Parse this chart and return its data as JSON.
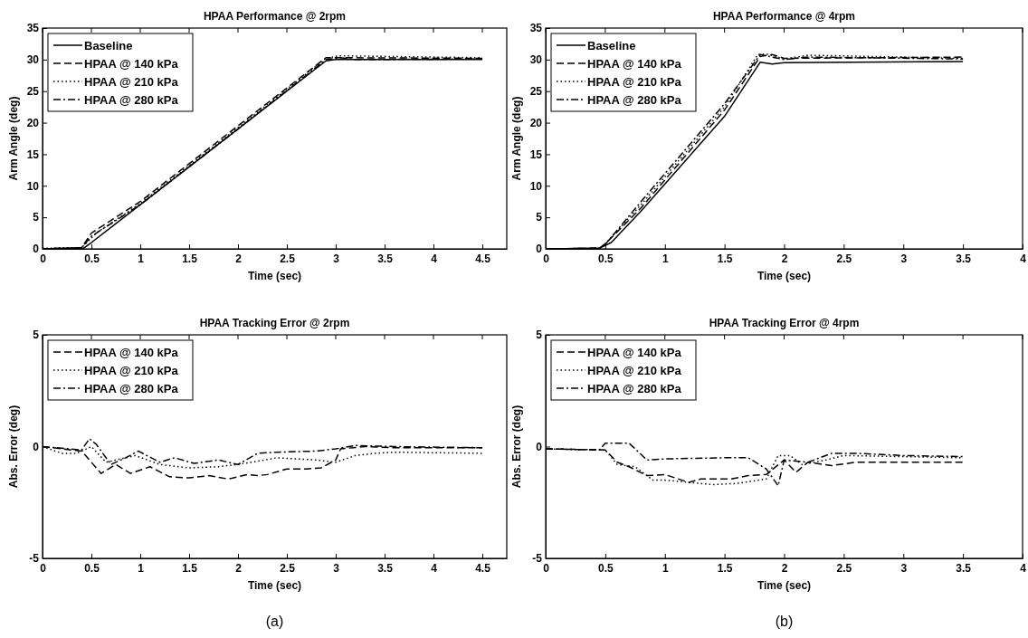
{
  "chart_data": [
    {
      "type": "line",
      "title": "HPAA Performance @ 2rpm",
      "xlabel": "Time (sec)",
      "ylabel": "Arm Angle (deg)",
      "xlim": [
        0,
        4.75
      ],
      "xticks": [
        0,
        0.5,
        1,
        1.5,
        2,
        2.5,
        3,
        3.5,
        4,
        4.5
      ],
      "ylim": [
        0,
        35
      ],
      "yticks": [
        0,
        5,
        10,
        15,
        20,
        25,
        30,
        35
      ],
      "legend": "top left",
      "grid": false,
      "series": [
        {
          "name": "Baseline",
          "color": "#000000",
          "line_style": "solid",
          "x": [
            0,
            0.42,
            0.5,
            2.9,
            3.0,
            4.5
          ],
          "values": [
            0,
            0.1,
            1,
            29.8,
            30,
            30
          ]
        },
        {
          "name": "HPAA @ 140 kPa",
          "color": "#000000",
          "line_style": "dashed",
          "x": [
            0,
            0.4,
            0.5,
            1,
            2,
            2.9,
            3,
            4.5
          ],
          "values": [
            0,
            0.2,
            2.5,
            7.5,
            19.5,
            30.3,
            30.3,
            30.2
          ]
        },
        {
          "name": "HPAA @ 210 kPa",
          "color": "#000000",
          "line_style": "dotted",
          "x": [
            0,
            0.4,
            0.55,
            1,
            2,
            2.9,
            3.03,
            4.5
          ],
          "values": [
            0.1,
            0.2,
            2.5,
            7.2,
            19.2,
            30.2,
            30.6,
            30.3
          ]
        },
        {
          "name": "HPAA @ 280 kPa",
          "color": "#000000",
          "line_style": "dashdot",
          "x": [
            0,
            0.4,
            0.5,
            1,
            2,
            2.9,
            3.05,
            3.2,
            4.5
          ],
          "values": [
            0,
            0.2,
            2,
            7,
            19,
            30,
            30.3,
            30,
            30.1
          ]
        }
      ]
    },
    {
      "type": "line",
      "title": "HPAA Performance @ 4rpm",
      "xlabel": "Time (sec)",
      "ylabel": "Arm Angle (deg)",
      "xlim": [
        0,
        4
      ],
      "xticks": [
        0,
        0.5,
        1,
        1.5,
        2,
        2.5,
        3,
        3.5,
        4
      ],
      "ylim": [
        0,
        35
      ],
      "yticks": [
        0,
        5,
        10,
        15,
        20,
        25,
        30,
        35
      ],
      "legend": "top left",
      "grid": false,
      "series": [
        {
          "name": "Baseline",
          "color": "#000000",
          "line_style": "solid",
          "x": [
            0,
            0.45,
            0.55,
            0.8,
            1.5,
            1.8,
            1.9,
            2,
            3.5
          ],
          "values": [
            0,
            0.1,
            1,
            6,
            21,
            29.6,
            29.3,
            29.5,
            29.7
          ]
        },
        {
          "name": "HPAA @ 140 kPa",
          "color": "#000000",
          "line_style": "dashed",
          "x": [
            0,
            0.45,
            0.5,
            0.8,
            1.5,
            1.8,
            1.9,
            2,
            3.5
          ],
          "values": [
            0,
            0.1,
            0.8,
            6.5,
            22,
            30.5,
            30.8,
            30.2,
            30.4
          ]
        },
        {
          "name": "HPAA @ 210 kPa",
          "color": "#000000",
          "line_style": "dotted",
          "x": [
            0,
            0.45,
            0.5,
            0.8,
            1.5,
            1.78,
            1.85,
            2.0,
            2.2,
            3.5
          ],
          "values": [
            0,
            0.1,
            0.8,
            7,
            22.5,
            30.8,
            30.9,
            30.1,
            30.7,
            30.2
          ]
        },
        {
          "name": "HPAA @ 280 kPa",
          "color": "#000000",
          "line_style": "dashdot",
          "x": [
            0,
            0.45,
            0.5,
            0.8,
            1.5,
            1.8,
            2,
            2.2,
            3.5
          ],
          "values": [
            0,
            0.1,
            0.7,
            7.5,
            23,
            30.8,
            30,
            30.4,
            30.1
          ]
        }
      ]
    },
    {
      "type": "line",
      "title": "HPAA Tracking Error @ 2rpm",
      "xlabel": "Time (sec)",
      "ylabel": "Abs. Error (deg)",
      "xlim": [
        0,
        4.75
      ],
      "xticks": [
        0,
        0.5,
        1,
        1.5,
        2,
        2.5,
        3,
        3.5,
        4,
        4.5
      ],
      "ylim": [
        -5,
        5
      ],
      "yticks": [
        -5,
        0,
        5
      ],
      "legend": "top left",
      "grid": false,
      "annotations": [
        "(a)"
      ],
      "series": [
        {
          "name": "HPAA @ 140 kPa",
          "color": "#000000",
          "line_style": "dashed",
          "x": [
            0,
            0.4,
            0.6,
            0.75,
            0.9,
            1.1,
            1.3,
            1.5,
            1.7,
            1.9,
            2.1,
            2.2,
            2.3,
            2.5,
            2.7,
            2.85,
            3.0,
            3.05,
            3.3,
            3.6,
            4.5
          ],
          "values": [
            0,
            -0.2,
            -1.2,
            -0.8,
            -1.2,
            -0.9,
            -1.35,
            -1.4,
            -1.3,
            -1.45,
            -1.25,
            -1.3,
            -1.25,
            -1.0,
            -1.0,
            -0.95,
            -0.6,
            -0.1,
            0,
            -0.05,
            -0.05
          ]
        },
        {
          "name": "HPAA @ 210 kPa",
          "color": "#000000",
          "line_style": "dotted",
          "x": [
            0,
            0.2,
            0.35,
            0.5,
            0.65,
            0.95,
            1.2,
            1.5,
            1.8,
            2.0,
            2.4,
            2.8,
            3.0,
            3.2,
            3.4,
            3.6,
            4.5
          ],
          "values": [
            0,
            -0.3,
            -0.3,
            0,
            -0.7,
            -0.4,
            -0.8,
            -0.95,
            -0.9,
            -0.8,
            -0.5,
            -0.6,
            -0.7,
            -0.4,
            -0.3,
            -0.25,
            -0.3
          ]
        },
        {
          "name": "HPAA @ 280 kPa",
          "color": "#000000",
          "line_style": "dashdot",
          "x": [
            0,
            0.4,
            0.48,
            0.55,
            0.7,
            0.85,
            0.98,
            1.2,
            1.35,
            1.55,
            1.8,
            2.0,
            2.2,
            2.4,
            2.8,
            3.0,
            3.2,
            3.6,
            4.5
          ],
          "values": [
            0,
            -0.15,
            0.35,
            0.1,
            -0.8,
            -0.5,
            -0.2,
            -0.7,
            -0.5,
            -0.75,
            -0.6,
            -0.8,
            -0.3,
            -0.25,
            -0.2,
            -0.1,
            0.05,
            0,
            -0.05
          ]
        }
      ]
    },
    {
      "type": "line",
      "title": "HPAA Tracking Error @ 4rpm",
      "xlabel": "Time (sec)",
      "ylabel": "Abs. Error (deg)",
      "xlim": [
        0,
        4
      ],
      "xticks": [
        0,
        0.5,
        1,
        1.5,
        2,
        2.5,
        3,
        3.5,
        4
      ],
      "ylim": [
        -5,
        5
      ],
      "yticks": [
        -5,
        0,
        5
      ],
      "legend": "top left",
      "grid": false,
      "annotations": [
        "(b)"
      ],
      "series": [
        {
          "name": "HPAA @ 140 kPa",
          "color": "#000000",
          "line_style": "dashed",
          "x": [
            0,
            0.5,
            0.6,
            0.7,
            0.85,
            1.0,
            1.2,
            1.3,
            1.55,
            1.7,
            1.85,
            2.0,
            2.1,
            2.2,
            2.4,
            2.6,
            3.5
          ],
          "values": [
            -0.1,
            -0.15,
            -0.7,
            -0.9,
            -1.3,
            -1.25,
            -1.6,
            -1.45,
            -1.45,
            -1.3,
            -1.25,
            -0.6,
            -1.15,
            -0.7,
            -0.85,
            -0.7,
            -0.7
          ]
        },
        {
          "name": "HPAA @ 210 kPa",
          "color": "#000000",
          "line_style": "dotted",
          "x": [
            0,
            0.5,
            0.6,
            0.75,
            0.9,
            1.0,
            1.2,
            1.4,
            1.6,
            1.85,
            1.95,
            2.05,
            2.15,
            2.35,
            2.5,
            3.5
          ],
          "values": [
            -0.1,
            -0.15,
            -0.8,
            -0.9,
            -1.5,
            -1.5,
            -1.6,
            -1.7,
            -1.65,
            -1.45,
            -0.4,
            -0.4,
            -0.8,
            -0.6,
            -0.4,
            -0.5
          ]
        },
        {
          "name": "HPAA @ 280 kPa",
          "color": "#000000",
          "line_style": "dashdot",
          "x": [
            0,
            0.45,
            0.5,
            0.7,
            0.85,
            1.0,
            1.5,
            1.7,
            1.85,
            1.95,
            2.0,
            2.2,
            2.4,
            2.6,
            3.0,
            3.5
          ],
          "values": [
            -0.1,
            -0.15,
            0.15,
            0.15,
            -0.6,
            -0.55,
            -0.5,
            -0.5,
            -1.0,
            -1.75,
            -0.6,
            -0.7,
            -0.3,
            -0.3,
            -0.4,
            -0.45
          ]
        }
      ]
    }
  ]
}
